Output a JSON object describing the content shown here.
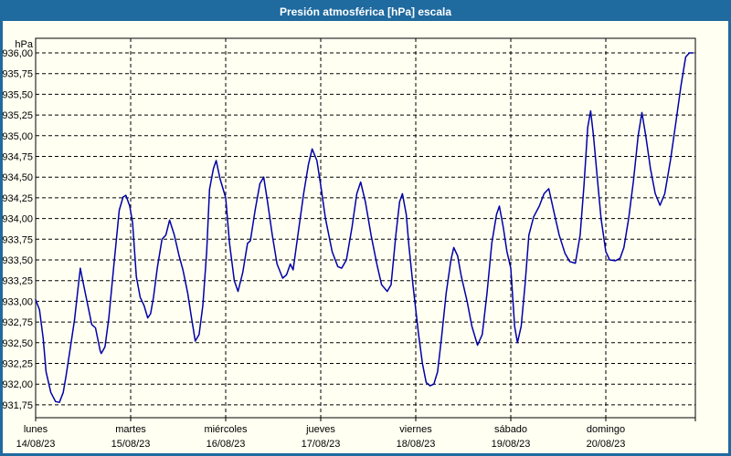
{
  "window": {
    "title": "Presión atmosférica [hPa] escala"
  },
  "colors": {
    "titlebar": "#1f6a9f",
    "window_background": "#fffff2",
    "frame_border": "#1f6a9f",
    "plot_border": "#000000",
    "gridline": "#000000",
    "line": "#0000a8",
    "title_text": "#ffffff",
    "axis_text": "#000000"
  },
  "chart_data": {
    "type": "line",
    "title": "Presión atmosférica [hPa] escala",
    "grid": "dashed",
    "legend": "none",
    "y_axis": {
      "unit": "hPa",
      "min": 931.75,
      "max": 936.0,
      "step": 0.25,
      "tick_values": [
        936.0,
        935.75,
        935.5,
        935.25,
        935.0,
        934.75,
        934.5,
        934.25,
        934.0,
        933.75,
        933.5,
        933.25,
        933.0,
        932.75,
        932.5,
        932.25,
        932.0,
        931.75
      ],
      "tick_labels": [
        "936,00",
        "935,75",
        "935,50",
        "935,25",
        "935,00",
        "934,75",
        "934,50",
        "934,25",
        "934,00",
        "933,75",
        "933,50",
        "933,25",
        "933,00",
        "932,75",
        "932,50",
        "932,25",
        "932,00",
        "931,75"
      ]
    },
    "x_axis": {
      "unit": "day",
      "days": [
        {
          "name": "lunes",
          "date": "14/08/23"
        },
        {
          "name": "martes",
          "date": "15/08/23"
        },
        {
          "name": "miércoles",
          "date": "16/08/23"
        },
        {
          "name": "jueves",
          "date": "17/08/23"
        },
        {
          "name": "viernes",
          "date": "18/08/23"
        },
        {
          "name": "sábado",
          "date": "19/08/23"
        },
        {
          "name": "domingo",
          "date": "20/08/23"
        }
      ]
    },
    "series": [
      {
        "name": "Presión atmosférica",
        "color": "#0000a8",
        "points": [
          [
            0.0,
            933.02
          ],
          [
            0.04,
            932.9
          ],
          [
            0.08,
            932.55
          ],
          [
            0.11,
            932.15
          ],
          [
            0.16,
            931.9
          ],
          [
            0.21,
            931.79
          ],
          [
            0.25,
            931.78
          ],
          [
            0.29,
            931.9
          ],
          [
            0.32,
            932.1
          ],
          [
            0.38,
            932.55
          ],
          [
            0.41,
            932.78
          ],
          [
            0.44,
            933.1
          ],
          [
            0.47,
            933.4
          ],
          [
            0.49,
            933.28
          ],
          [
            0.54,
            933.0
          ],
          [
            0.59,
            932.72
          ],
          [
            0.63,
            932.68
          ],
          [
            0.68,
            932.4
          ],
          [
            0.69,
            932.37
          ],
          [
            0.73,
            932.45
          ],
          [
            0.77,
            932.8
          ],
          [
            0.82,
            933.4
          ],
          [
            0.88,
            934.1
          ],
          [
            0.92,
            934.26
          ],
          [
            0.95,
            934.28
          ],
          [
            0.99,
            934.15
          ],
          [
            1.02,
            933.95
          ],
          [
            1.06,
            933.3
          ],
          [
            1.1,
            933.05
          ],
          [
            1.14,
            932.95
          ],
          [
            1.18,
            932.8
          ],
          [
            1.21,
            932.85
          ],
          [
            1.24,
            933.05
          ],
          [
            1.28,
            933.4
          ],
          [
            1.33,
            933.75
          ],
          [
            1.37,
            933.8
          ],
          [
            1.41,
            933.98
          ],
          [
            1.46,
            933.8
          ],
          [
            1.51,
            933.55
          ],
          [
            1.55,
            933.38
          ],
          [
            1.6,
            933.1
          ],
          [
            1.64,
            932.8
          ],
          [
            1.68,
            932.52
          ],
          [
            1.72,
            932.6
          ],
          [
            1.76,
            932.95
          ],
          [
            1.8,
            933.6
          ],
          [
            1.83,
            934.35
          ],
          [
            1.87,
            934.6
          ],
          [
            1.9,
            934.7
          ],
          [
            1.94,
            934.48
          ],
          [
            2.0,
            934.25
          ],
          [
            2.04,
            933.7
          ],
          [
            2.09,
            933.25
          ],
          [
            2.13,
            933.12
          ],
          [
            2.18,
            933.35
          ],
          [
            2.23,
            933.7
          ],
          [
            2.26,
            933.73
          ],
          [
            2.31,
            934.1
          ],
          [
            2.36,
            934.42
          ],
          [
            2.4,
            934.5
          ],
          [
            2.44,
            934.2
          ],
          [
            2.49,
            933.8
          ],
          [
            2.54,
            933.45
          ],
          [
            2.6,
            933.28
          ],
          [
            2.64,
            933.32
          ],
          [
            2.68,
            933.45
          ],
          [
            2.71,
            933.38
          ],
          [
            2.76,
            933.8
          ],
          [
            2.82,
            934.3
          ],
          [
            2.87,
            934.65
          ],
          [
            2.91,
            934.84
          ],
          [
            2.96,
            934.7
          ],
          [
            3.0,
            934.4
          ],
          [
            3.05,
            934.0
          ],
          [
            3.12,
            933.6
          ],
          [
            3.18,
            933.42
          ],
          [
            3.22,
            933.4
          ],
          [
            3.27,
            933.5
          ],
          [
            3.33,
            933.9
          ],
          [
            3.38,
            934.3
          ],
          [
            3.42,
            934.44
          ],
          [
            3.47,
            934.2
          ],
          [
            3.53,
            933.8
          ],
          [
            3.59,
            933.45
          ],
          [
            3.64,
            933.2
          ],
          [
            3.7,
            933.12
          ],
          [
            3.74,
            933.2
          ],
          [
            3.79,
            933.8
          ],
          [
            3.83,
            934.2
          ],
          [
            3.86,
            934.3
          ],
          [
            3.9,
            934.05
          ],
          [
            3.93,
            933.65
          ],
          [
            3.97,
            933.2
          ],
          [
            4.0,
            932.9
          ],
          [
            4.03,
            932.6
          ],
          [
            4.07,
            932.25
          ],
          [
            4.11,
            932.02
          ],
          [
            4.15,
            931.98
          ],
          [
            4.19,
            932.0
          ],
          [
            4.23,
            932.15
          ],
          [
            4.27,
            932.55
          ],
          [
            4.32,
            933.1
          ],
          [
            4.37,
            933.5
          ],
          [
            4.4,
            933.65
          ],
          [
            4.44,
            933.55
          ],
          [
            4.48,
            933.3
          ],
          [
            4.54,
            933.0
          ],
          [
            4.59,
            932.7
          ],
          [
            4.65,
            932.47
          ],
          [
            4.7,
            932.6
          ],
          [
            4.75,
            933.1
          ],
          [
            4.8,
            933.7
          ],
          [
            4.85,
            934.05
          ],
          [
            4.88,
            934.15
          ],
          [
            4.92,
            933.9
          ],
          [
            4.96,
            933.6
          ],
          [
            5.0,
            933.4
          ],
          [
            5.04,
            932.7
          ],
          [
            5.07,
            932.5
          ],
          [
            5.11,
            932.7
          ],
          [
            5.15,
            933.2
          ],
          [
            5.19,
            933.8
          ],
          [
            5.24,
            934.02
          ],
          [
            5.3,
            934.15
          ],
          [
            5.35,
            934.3
          ],
          [
            5.4,
            934.36
          ],
          [
            5.45,
            934.1
          ],
          [
            5.51,
            933.8
          ],
          [
            5.57,
            933.58
          ],
          [
            5.62,
            933.48
          ],
          [
            5.68,
            933.46
          ],
          [
            5.73,
            933.8
          ],
          [
            5.77,
            934.4
          ],
          [
            5.81,
            935.1
          ],
          [
            5.84,
            935.3
          ],
          [
            5.87,
            935.0
          ],
          [
            5.91,
            934.5
          ],
          [
            5.95,
            934.0
          ],
          [
            6.0,
            933.6
          ],
          [
            6.04,
            933.5
          ],
          [
            6.1,
            933.49
          ],
          [
            6.15,
            933.52
          ],
          [
            6.19,
            933.65
          ],
          [
            6.24,
            934.0
          ],
          [
            6.29,
            934.45
          ],
          [
            6.34,
            935.0
          ],
          [
            6.38,
            935.28
          ],
          [
            6.42,
            935.0
          ],
          [
            6.47,
            934.6
          ],
          [
            6.52,
            934.3
          ],
          [
            6.57,
            934.16
          ],
          [
            6.62,
            934.3
          ],
          [
            6.68,
            934.7
          ],
          [
            6.73,
            935.1
          ],
          [
            6.79,
            935.6
          ],
          [
            6.84,
            935.95
          ],
          [
            6.88,
            936.0
          ],
          [
            6.92,
            936.0
          ]
        ]
      }
    ]
  }
}
